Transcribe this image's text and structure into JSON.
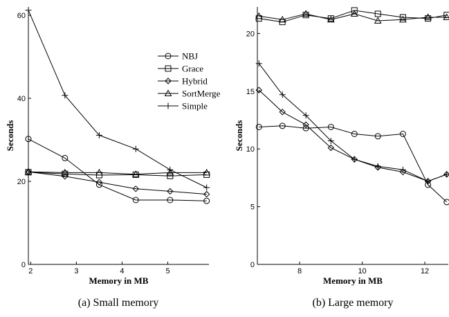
{
  "legend": {
    "items": [
      {
        "label": "NBJ",
        "marker": "circle"
      },
      {
        "label": "Grace",
        "marker": "square"
      },
      {
        "label": "Hybrid",
        "marker": "diamond"
      },
      {
        "label": "SortMerge",
        "marker": "triangle"
      },
      {
        "label": "Simple",
        "marker": "plus"
      }
    ]
  },
  "chart_data": [
    {
      "type": "line",
      "caption": "(a) Small memory",
      "xlabel": "Memory in MB",
      "ylabel": "Seconds",
      "xlim": [
        1.95,
        5.9
      ],
      "ylim": [
        0,
        62
      ],
      "xticks": [
        2,
        3,
        4,
        5
      ],
      "yticks": [
        0,
        20,
        40,
        60
      ],
      "x": [
        1.95,
        2.75,
        3.5,
        4.3,
        5.05,
        5.85
      ],
      "series": [
        {
          "name": "NBJ",
          "marker": "circle",
          "values": [
            30.2,
            25.6,
            19.2,
            15.5,
            15.5,
            15.3
          ]
        },
        {
          "name": "Grace",
          "marker": "square",
          "values": [
            22.2,
            21.8,
            21.5,
            21.6,
            21.3,
            21.6
          ]
        },
        {
          "name": "Hybrid",
          "marker": "diamond",
          "values": [
            22.3,
            21.2,
            19.8,
            18.2,
            17.6,
            16.9
          ]
        },
        {
          "name": "SortMerge",
          "marker": "triangle",
          "values": [
            22.3,
            22.1,
            22.1,
            21.7,
            22.1,
            22.1
          ]
        },
        {
          "name": "Simple",
          "marker": "plus",
          "values": [
            61.2,
            40.7,
            31.1,
            27.8,
            22.8,
            18.5
          ]
        }
      ]
    },
    {
      "type": "line",
      "caption": "(b) Large memory",
      "xlabel": "Memory in MB",
      "ylabel": "Seconds",
      "xlim": [
        6.65,
        12.75
      ],
      "ylim": [
        0,
        22.3
      ],
      "xticks": [
        8,
        10,
        12
      ],
      "yticks": [
        0,
        5,
        10,
        15,
        20
      ],
      "x": [
        6.7,
        7.45,
        8.2,
        9.0,
        9.75,
        10.5,
        11.3,
        12.1,
        12.7
      ],
      "series": [
        {
          "name": "NBJ",
          "marker": "circle",
          "values": [
            11.9,
            12.0,
            11.8,
            11.9,
            11.3,
            11.1,
            11.3,
            6.9,
            5.4
          ]
        },
        {
          "name": "Grace",
          "marker": "square",
          "values": [
            21.3,
            21.0,
            21.6,
            21.3,
            22.0,
            21.7,
            21.4,
            21.3,
            21.6
          ]
        },
        {
          "name": "Hybrid",
          "marker": "diamond",
          "values": [
            15.1,
            13.2,
            12.1,
            10.1,
            9.1,
            8.4,
            8.0,
            7.2,
            7.8
          ]
        },
        {
          "name": "SortMerge",
          "marker": "triangle",
          "values": [
            21.5,
            21.2,
            21.7,
            21.2,
            21.7,
            21.1,
            21.2,
            21.4,
            21.4
          ]
        },
        {
          "name": "Simple",
          "marker": "plus",
          "values": [
            17.4,
            14.7,
            12.9,
            10.7,
            9.1,
            8.5,
            8.2,
            7.2,
            7.8
          ]
        }
      ]
    }
  ]
}
